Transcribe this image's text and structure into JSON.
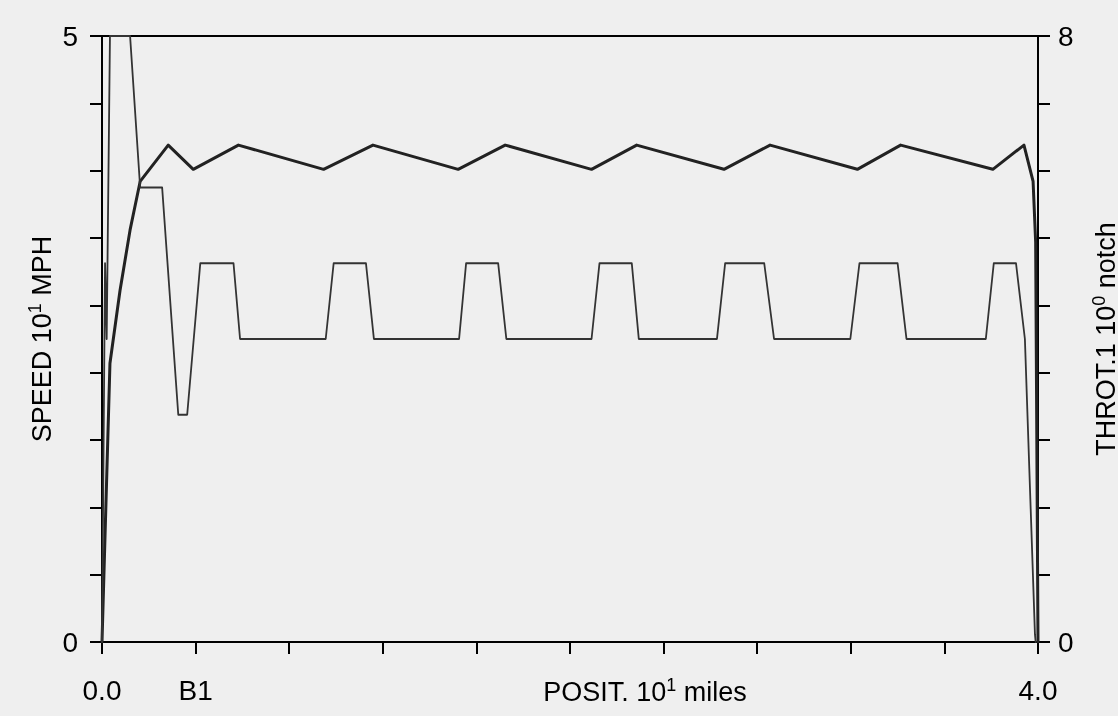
{
  "chart_data": {
    "type": "line",
    "xlabel": "POSIT. 10$^{1}$ miles",
    "ylabel": "SPEED 10$^{1}$ MPH",
    "y2label": "THROT.1 10$^{0}$ notch",
    "xlim": [
      0,
      4
    ],
    "ylim": [
      0,
      5
    ],
    "y2lim": [
      0,
      8
    ],
    "xticks": [
      {
        "value": 0,
        "label": "0.0"
      },
      {
        "value": 0.4,
        "label": "B1"
      },
      {
        "value": 0.8,
        "label": null
      },
      {
        "value": 1.2,
        "label": null
      },
      {
        "value": 1.6,
        "label": null
      },
      {
        "value": 2.0,
        "label": null
      },
      {
        "value": 2.4,
        "label": null
      },
      {
        "value": 2.8,
        "label": null
      },
      {
        "value": 3.2,
        "label": null
      },
      {
        "value": 3.6,
        "label": null
      },
      {
        "value": 4,
        "label": "4.0"
      }
    ],
    "yticks": [
      0,
      {
        "value": 0.556,
        "label": null
      },
      {
        "value": 1.111,
        "label": null
      },
      {
        "value": 1.667,
        "label": null
      },
      {
        "value": 2.222,
        "label": null
      },
      {
        "value": 2.778,
        "label": null
      },
      {
        "value": 3.333,
        "label": null
      },
      {
        "value": 3.889,
        "label": null
      },
      {
        "value": 4.444,
        "label": null
      },
      5
    ],
    "y2ticks": [
      0,
      {
        "value": 0.889,
        "label": null
      },
      {
        "value": 1.778,
        "label": null
      },
      {
        "value": 2.667,
        "label": null
      },
      {
        "value": 3.556,
        "label": null
      },
      {
        "value": 4.444,
        "label": null
      },
      {
        "value": 5.333,
        "label": null
      },
      {
        "value": 6.222,
        "label": null
      },
      {
        "value": 7.111,
        "label": null
      },
      8
    ],
    "grid": false,
    "marker": "none",
    "line_style": "solid",
    "series": [
      {
        "color": "#222222",
        "x": [
          0,
          0.034,
          0.077,
          0.12,
          0.163,
          0.283,
          0.39,
          0.583,
          0.947,
          1.158,
          1.522,
          1.723,
          2.092,
          2.285,
          2.658,
          2.855,
          3.228,
          3.413,
          3.807,
          3.94,
          3.979,
          3.99,
          4.0
        ],
        "values": [
          0,
          2.3,
          2.9,
          3.4,
          3.8,
          4.1,
          3.9,
          4.1,
          3.9,
          4.1,
          3.9,
          4.1,
          3.9,
          4.1,
          3.9,
          4.1,
          3.9,
          4.1,
          3.9,
          4.1,
          3.8,
          3.3,
          0
        ]
      },
      {
        "color": "#333333",
        "axis": "y2",
        "x": [
          0,
          0.013,
          0.02,
          0.034,
          0.12,
          0.163,
          0.257,
          0.326,
          0.364,
          0.42,
          0.562,
          0.59,
          0.956,
          0.99,
          1.128,
          1.162,
          1.526,
          1.556,
          1.693,
          1.728,
          2.092,
          2.126,
          2.264,
          2.294,
          2.628,
          2.663,
          2.83,
          2.872,
          3.198,
          3.237,
          3.4,
          3.438,
          3.777,
          3.811,
          3.906,
          3.944,
          3.987,
          3.99
        ],
        "values": [
          0,
          5,
          4,
          8,
          8,
          6,
          6,
          3,
          3,
          5,
          5,
          4,
          4,
          5,
          5,
          4,
          4,
          5,
          5,
          4,
          4,
          5,
          5,
          4,
          4,
          5,
          5,
          4,
          4,
          5,
          5,
          4,
          4,
          5,
          5,
          4,
          0.1,
          0
        ]
      }
    ]
  }
}
